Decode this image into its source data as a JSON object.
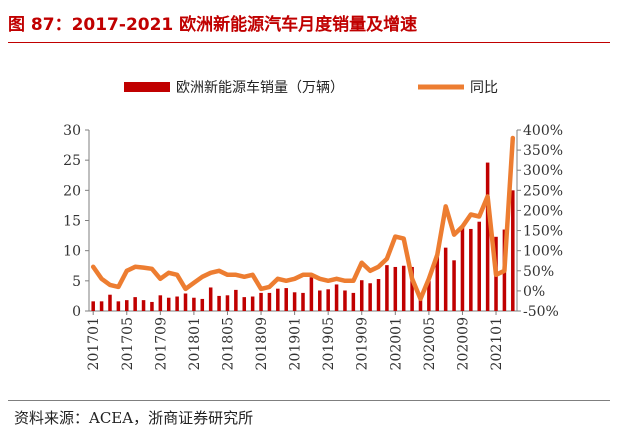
{
  "figure": {
    "title": "图 87：2017-2021 欧洲新能源汽车月度销量及增速",
    "source": "资料来源：ACEA，浙商证券研究所"
  },
  "colors": {
    "bar": "#c00000",
    "line": "#ed7d31",
    "title": "#c00000"
  },
  "chart_data": {
    "type": "bar",
    "x_ticks": [
      "201701",
      "201705",
      "201709",
      "201801",
      "201805",
      "201809",
      "201901",
      "201905",
      "201909",
      "202001",
      "202005",
      "202009",
      "202101"
    ],
    "categories": [
      "201701",
      "201702",
      "201703",
      "201704",
      "201705",
      "201706",
      "201707",
      "201708",
      "201709",
      "201710",
      "201711",
      "201712",
      "201801",
      "201802",
      "201803",
      "201804",
      "201805",
      "201806",
      "201807",
      "201808",
      "201809",
      "201810",
      "201811",
      "201812",
      "201901",
      "201902",
      "201903",
      "201904",
      "201905",
      "201906",
      "201907",
      "201908",
      "201909",
      "201910",
      "201911",
      "201912",
      "202001",
      "202002",
      "202003",
      "202004",
      "202005",
      "202006",
      "202007",
      "202008",
      "202009",
      "202010",
      "202011",
      "202012",
      "202101",
      "202102",
      "202103"
    ],
    "series": [
      {
        "name": "欧洲新能源车销量（万辆）",
        "type": "bar",
        "axis": "left",
        "values": [
          1.6,
          1.6,
          2.7,
          1.6,
          1.8,
          2.3,
          1.8,
          1.5,
          2.6,
          2.2,
          2.4,
          2.9,
          2.2,
          2.0,
          3.9,
          2.5,
          2.6,
          3.5,
          2.3,
          2.4,
          3.0,
          3.0,
          3.7,
          3.8,
          3.1,
          3.0,
          5.6,
          3.4,
          3.6,
          4.4,
          3.4,
          3.0,
          5.1,
          4.6,
          5.3,
          7.6,
          7.3,
          7.5,
          7.3,
          2.2,
          5.0,
          9.6,
          10.5,
          8.4,
          13.8,
          13.6,
          14.8,
          24.6,
          12.3,
          13.5,
          20.0
        ]
      },
      {
        "name": "同比",
        "type": "line",
        "axis": "right",
        "values": [
          60,
          30,
          15,
          10,
          50,
          60,
          58,
          55,
          30,
          45,
          40,
          5,
          20,
          35,
          45,
          50,
          40,
          40,
          35,
          40,
          5,
          10,
          30,
          25,
          30,
          40,
          40,
          30,
          25,
          30,
          25,
          25,
          70,
          50,
          60,
          80,
          135,
          130,
          30,
          -20,
          30,
          90,
          210,
          140,
          160,
          190,
          185,
          235,
          40,
          50,
          380
        ]
      }
    ],
    "y_left": {
      "min": 0,
      "max": 30,
      "ticks": [
        0,
        5,
        10,
        15,
        20,
        25,
        30
      ]
    },
    "y_right": {
      "min": -50,
      "max": 400,
      "ticks": [
        "-50%",
        "0%",
        "50%",
        "100%",
        "150%",
        "200%",
        "250%",
        "300%",
        "350%",
        "400%"
      ]
    },
    "legend_position": "top",
    "grid": false
  }
}
